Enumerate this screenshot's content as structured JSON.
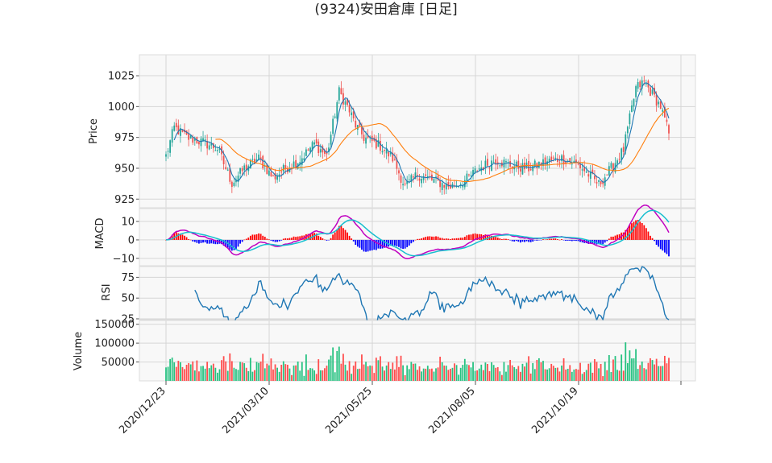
{
  "title": "(9324)安田倉庫 [日足]",
  "chart_data": {
    "type": "candlestick",
    "title": "(9324)安田倉庫 [日足]",
    "x_tick_labels": [
      "2020/12/23",
      "2021/03/10",
      "2021/05/25",
      "2021/08/05",
      "2021/10/19"
    ],
    "num_bars": 245,
    "price": {
      "ylabel": "Price",
      "ylim": [
        918,
        1042
      ],
      "yticks": [
        925,
        950,
        975,
        1000,
        1025
      ],
      "close_anchors": [
        [
          0,
          960
        ],
        [
          4,
          983
        ],
        [
          10,
          975
        ],
        [
          18,
          971
        ],
        [
          25,
          966
        ],
        [
          32,
          938
        ],
        [
          38,
          950
        ],
        [
          45,
          958
        ],
        [
          52,
          942
        ],
        [
          58,
          950
        ],
        [
          65,
          957
        ],
        [
          72,
          970
        ],
        [
          78,
          960
        ],
        [
          84,
          1012
        ],
        [
          88,
          1000
        ],
        [
          92,
          985
        ],
        [
          96,
          975
        ],
        [
          104,
          968
        ],
        [
          110,
          958
        ],
        [
          116,
          935
        ],
        [
          122,
          945
        ],
        [
          130,
          940
        ],
        [
          138,
          935
        ],
        [
          145,
          940
        ],
        [
          152,
          950
        ],
        [
          160,
          957
        ],
        [
          168,
          952
        ],
        [
          176,
          950
        ],
        [
          184,
          955
        ],
        [
          192,
          958
        ],
        [
          200,
          953
        ],
        [
          205,
          945
        ],
        [
          210,
          937
        ],
        [
          216,
          950
        ],
        [
          222,
          965
        ],
        [
          228,
          1015
        ],
        [
          232,
          1020
        ],
        [
          236,
          1010
        ],
        [
          240,
          1000
        ],
        [
          244,
          978
        ]
      ],
      "sma_short_color": "#1f77b4",
      "sma_long_color": "#ff7f0e",
      "up_color": "#26a69a",
      "down_color": "#ef5350"
    },
    "macd": {
      "ylabel": "MACD",
      "ylim": [
        -14,
        17
      ],
      "yticks": [
        -10,
        0,
        10
      ],
      "macd_color": "#c000c0",
      "signal_color": "#17becf",
      "hist_up_color": "#ff0000",
      "hist_down_color": "#0000ff"
    },
    "rsi": {
      "ylabel": "RSI",
      "ylim": [
        24,
        88
      ],
      "yticks": [
        25,
        50,
        75
      ],
      "color": "#1f77b4"
    },
    "volume": {
      "ylabel": "Volume",
      "ylim": [
        0,
        160000
      ],
      "yticks": [
        50000,
        100000,
        150000
      ],
      "up_color": "#26c281",
      "down_color": "#ff4d4d"
    }
  }
}
